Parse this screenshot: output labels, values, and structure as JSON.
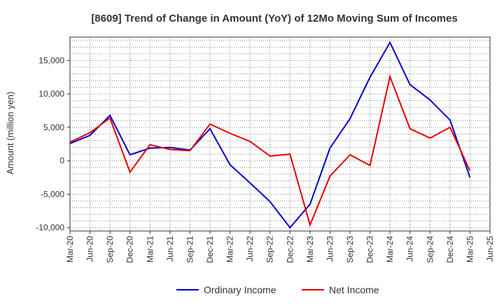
{
  "chart_data": {
    "type": "line",
    "title": "[8609]  Trend of Change in Amount (YoY) of 12Mo Moving Sum of Incomes",
    "xlabel": "",
    "ylabel": "Amount (million yen)",
    "ylim": [
      -10500,
      18500
    ],
    "yticks": [
      15000,
      10000,
      5000,
      0,
      -5000,
      -10000
    ],
    "ytick_labels": [
      "15,000",
      "10,000",
      "5,000",
      "0",
      "-5,000",
      "-10,000"
    ],
    "categories": [
      "Mar-20",
      "Jun-20",
      "Sep-20",
      "Dec-20",
      "Mar-21",
      "Jun-21",
      "Sep-21",
      "Dec-21",
      "Mar-22",
      "Jun-22",
      "Sep-22",
      "Dec-22",
      "Mar-23",
      "Jun-23",
      "Sep-23",
      "Dec-23",
      "Mar-24",
      "Jun-24",
      "Sep-24",
      "Dec-24",
      "Mar-25",
      "Jun-25"
    ],
    "grid": true,
    "legend_position": "bottom",
    "series": [
      {
        "name": "Ordinary Income",
        "color": "#0000cc",
        "values": [
          2600,
          3800,
          6800,
          900,
          1900,
          2000,
          1600,
          4800,
          -600,
          -3300,
          -6100,
          -10000,
          -6500,
          1900,
          6300,
          12500,
          17700,
          11400,
          9100,
          6100,
          -2500,
          null
        ]
      },
      {
        "name": "Net Income",
        "color": "#e60000",
        "values": [
          2800,
          4200,
          6400,
          -1700,
          2400,
          1700,
          1500,
          5500,
          4100,
          2900,
          700,
          1000,
          -9600,
          -2300,
          900,
          -700,
          12600,
          4800,
          3400,
          5000,
          -1500,
          null
        ]
      }
    ]
  }
}
